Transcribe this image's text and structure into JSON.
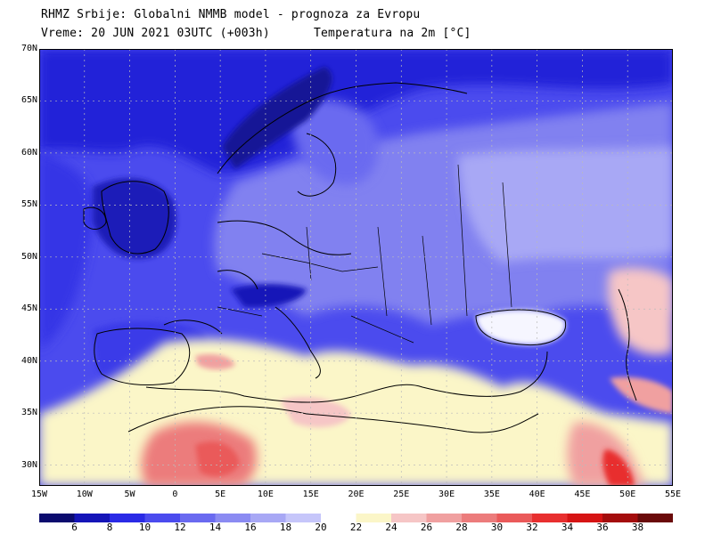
{
  "header": {
    "line1": "RHMZ Srbije: Globalni NMMB model - prognoza za Evropu",
    "line2": "Vreme: 20 JUN 2021 03UTC (+003h)",
    "line2b": "Temperatura na 2m [°C]"
  },
  "axes": {
    "lat_labels": [
      "70N",
      "65N",
      "60N",
      "55N",
      "50N",
      "45N",
      "40N",
      "35N",
      "30N"
    ],
    "lon_labels": [
      "15W",
      "10W",
      "5W",
      "0",
      "5E",
      "10E",
      "15E",
      "20E",
      "25E",
      "30E",
      "35E",
      "40E",
      "45E",
      "50E",
      "55E"
    ],
    "lat_range": [
      28,
      70
    ],
    "lon_range": [
      -15,
      55
    ],
    "grid": true
  },
  "legend": {
    "labels": [
      "6",
      "8",
      "10",
      "12",
      "14",
      "16",
      "18",
      "20",
      "22",
      "24",
      "26",
      "28",
      "30",
      "32",
      "34",
      "36",
      "38"
    ],
    "colors": [
      "#0b0b6e",
      "#1515b8",
      "#2a2ae6",
      "#4b4bee",
      "#6a6af0",
      "#8b8bf2",
      "#a8a8f5",
      "#c6c6fa",
      "#ffffff",
      "#fbf6c8",
      "#f6c6c6",
      "#f0a0a0",
      "#ec7c7c",
      "#ea5a5a",
      "#e82f2f",
      "#d61414",
      "#a40d0d",
      "#6a0a0a"
    ]
  },
  "colors": {
    "sea": "#2a2ae6",
    "land_cool": "#8b8bf2",
    "land_warm": "#fbf6c8",
    "hot": "#ea5a5a"
  }
}
